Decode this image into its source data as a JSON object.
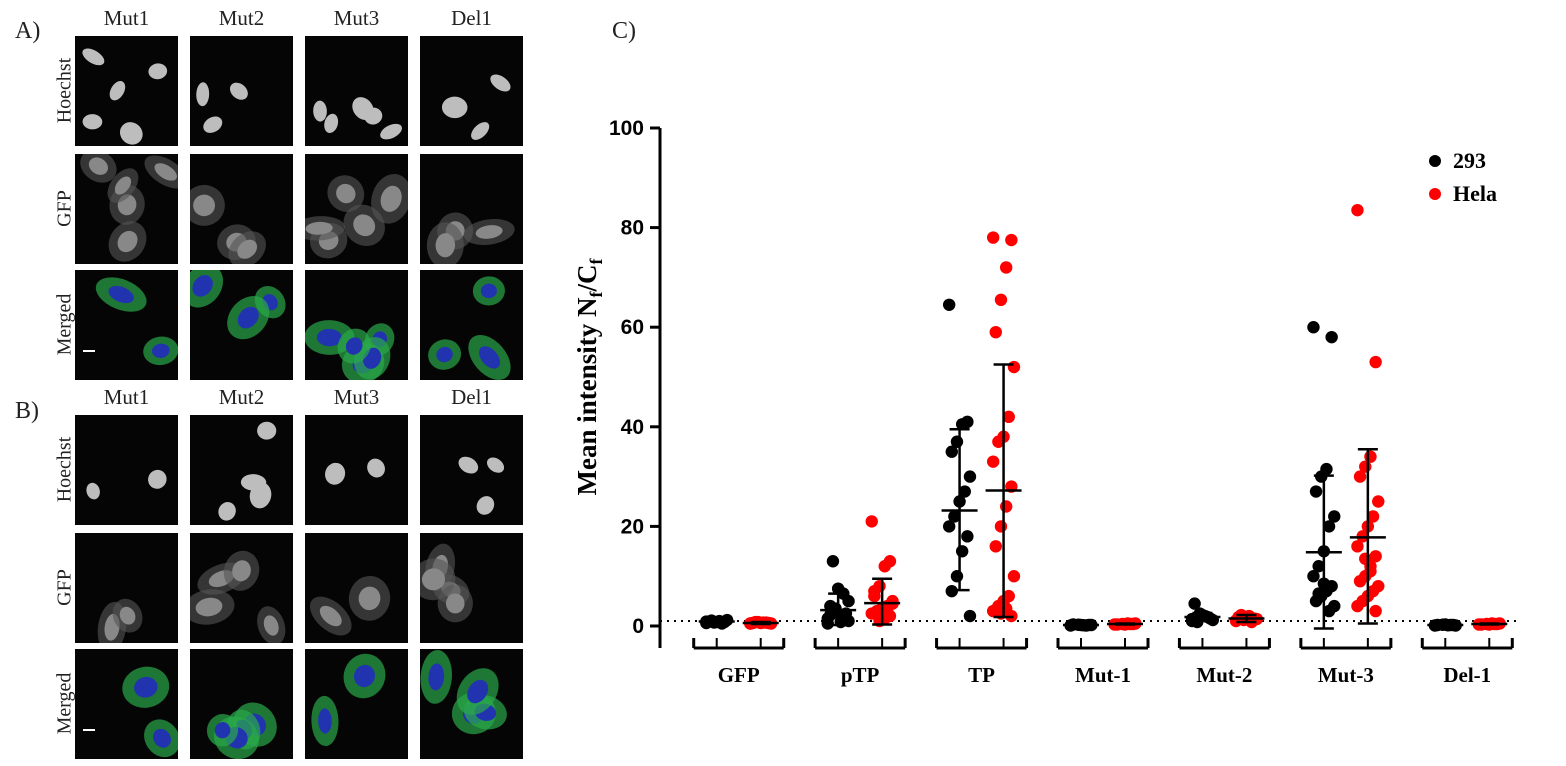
{
  "figure": {
    "panel_a_letter": "A)",
    "panel_b_letter": "B)",
    "panel_c_letter": "C)",
    "panel_a": {
      "columns": [
        "Mut1",
        "Mut2",
        "Mut3",
        "Del1"
      ],
      "rows": [
        "Hoechst",
        "GFP",
        "Merged"
      ]
    },
    "panel_b": {
      "columns": [
        "Mut1",
        "Mut2",
        "Mut3",
        "Del1"
      ],
      "rows": [
        "Hoechst",
        "GFP",
        "Merged"
      ]
    }
  },
  "colors": {
    "series_293": "#000000",
    "series_hela": "#ff0000",
    "nucleus_blue": "#2233b0",
    "cytoplasm_green": "#2aa84a"
  },
  "chart_data": {
    "type": "scatter",
    "title": "",
    "xlabel": "",
    "ylabel": "Mean intensity N",
    "ylabel_sub1": "f",
    "ylabel_mid": "/C",
    "ylabel_sub2": "f",
    "ylim": [
      0,
      100
    ],
    "yticks": [
      "0",
      "20",
      "40",
      "60",
      "80",
      "100"
    ],
    "reference_line": 1,
    "legend": {
      "position": "top-right"
    },
    "categories": [
      "GFP",
      "pTP",
      "TP",
      "Mut-1",
      "Mut-2",
      "Mut-3",
      "Del-1"
    ],
    "series": [
      {
        "name": "293",
        "color": "#000000",
        "mean": [
          0.9,
          3.2,
          23.2,
          0.2,
          1.8,
          14.8,
          0.2
        ],
        "sd_upper": [
          1.1,
          6.5,
          39.5,
          0.3,
          2.6,
          30.2,
          0.3
        ],
        "sd_lower": [
          0.7,
          0.2,
          7.2,
          0.1,
          1.0,
          -0.5,
          0.1
        ],
        "points": [
          [
            0.6,
            0.8,
            1.0,
            0.7,
            0.9,
            1.2,
            0.5,
            0.8,
            1.1,
            0.9
          ],
          [
            0.5,
            1.2,
            2.0,
            3.0,
            4.0,
            5.0,
            6.5,
            7.5,
            13.0,
            1.5,
            2.5,
            0.8,
            3.5,
            2.2,
            1.0
          ],
          [
            64.5,
            41.0,
            40.5,
            37.0,
            35.0,
            30.0,
            27.0,
            25.0,
            22.0,
            20.0,
            18.0,
            15.0,
            10.0,
            7.0,
            2.0
          ],
          [
            0.1,
            0.2,
            0.15,
            0.25,
            0.3,
            0.2,
            0.1,
            0.2
          ],
          [
            1.0,
            1.5,
            2.0,
            2.5,
            4.5,
            1.2,
            1.8,
            2.2,
            0.8,
            1.4
          ],
          [
            60.0,
            58.0,
            31.5,
            30.0,
            27.0,
            22.0,
            20.0,
            15.0,
            12.0,
            10.0,
            8.0,
            7.0,
            6.0,
            5.0,
            4.0,
            3.0,
            8.5,
            6.5
          ],
          [
            0.1,
            0.2,
            0.15,
            0.25,
            0.2,
            0.1,
            0.2,
            0.3
          ]
        ]
      },
      {
        "name": "Hela",
        "color": "#ff0000",
        "mean": [
          0.6,
          4.6,
          27.2,
          0.4,
          1.5,
          17.8,
          0.4
        ],
        "sd_upper": [
          0.8,
          9.5,
          52.5,
          0.5,
          2.2,
          35.5,
          0.5
        ],
        "sd_lower": [
          0.4,
          0.3,
          1.8,
          0.3,
          0.8,
          0.5,
          0.3
        ],
        "points": [
          [
            0.5,
            0.6,
            0.7,
            0.8,
            0.6,
            0.5,
            0.7,
            0.6,
            0.8,
            0.5
          ],
          [
            21.0,
            13.0,
            12.0,
            8.0,
            7.0,
            5.0,
            4.0,
            3.5,
            3.0,
            2.5,
            2.0,
            1.5,
            1.0,
            6.0,
            4.5,
            2.8
          ],
          [
            78.0,
            77.5,
            72.0,
            65.5,
            59.0,
            52.0,
            42.0,
            38.0,
            37.0,
            33.0,
            28.0,
            24.0,
            20.0,
            16.0,
            10.0,
            6.0,
            5.0,
            4.0,
            3.0,
            2.0,
            3.5,
            2.5
          ],
          [
            0.3,
            0.4,
            0.5,
            0.4,
            0.3,
            0.5,
            0.4,
            0.3
          ],
          [
            1.0,
            1.5,
            2.0,
            1.2,
            1.8,
            1.4,
            0.8,
            1.6,
            2.2,
            1.1
          ],
          [
            83.5,
            53.0,
            34.0,
            32.0,
            30.0,
            25.0,
            22.0,
            20.0,
            18.0,
            16.0,
            14.0,
            12.0,
            10.0,
            9.0,
            8.0,
            7.0,
            6.0,
            5.0,
            4.0,
            3.0,
            11.0,
            13.5
          ],
          [
            0.3,
            0.4,
            0.5,
            0.4,
            0.3,
            0.5,
            0.4,
            0.3
          ]
        ]
      }
    ]
  }
}
